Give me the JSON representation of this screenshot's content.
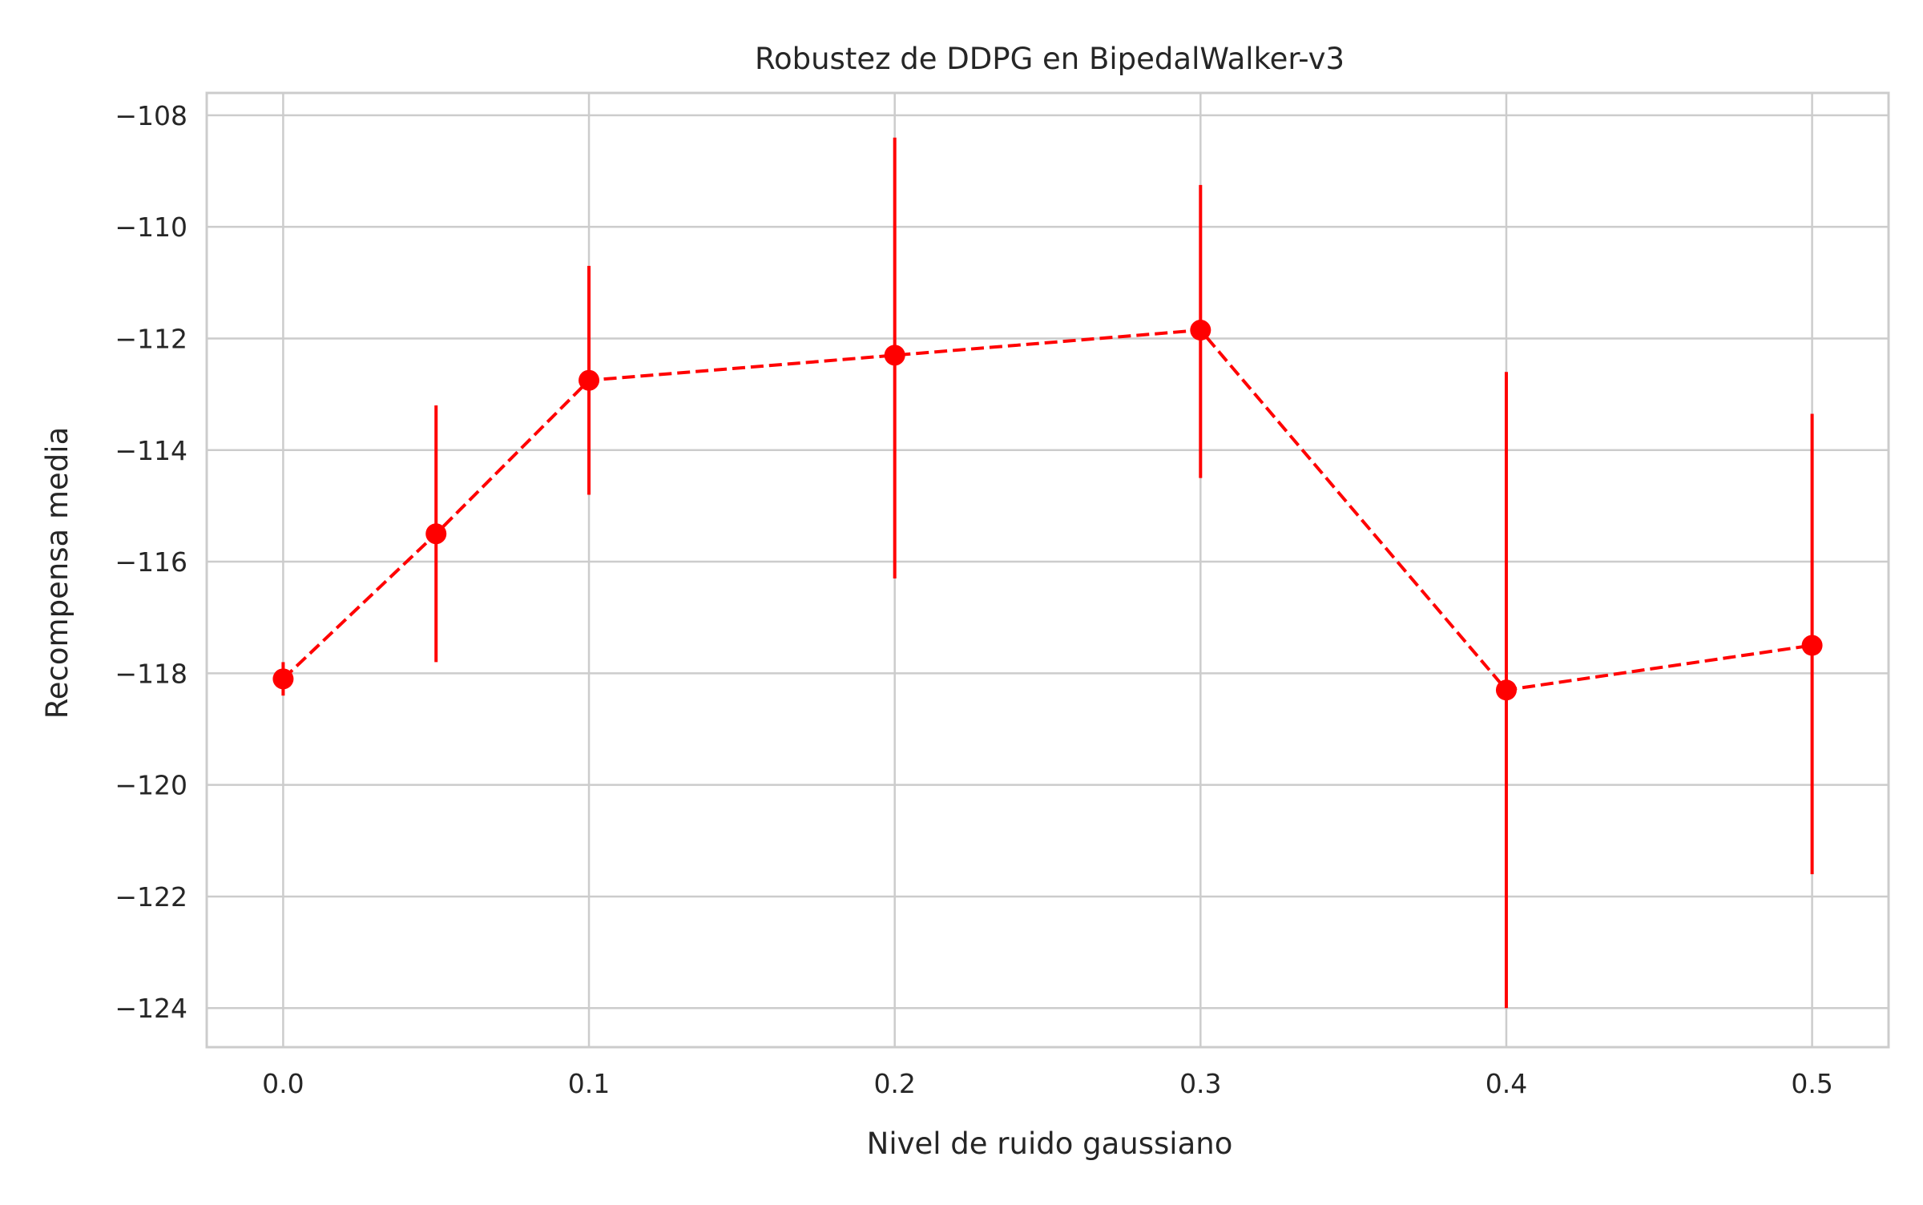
{
  "chart_data": {
    "type": "line",
    "title": "Robustez de DDPG en BipedalWalker-v3",
    "xlabel": "Nivel de ruido gaussiano",
    "ylabel": "Recompensa media",
    "xlim": [
      -0.025,
      0.525
    ],
    "ylim": [
      -124.7,
      -107.6
    ],
    "x_ticks": [
      0.0,
      0.1,
      0.2,
      0.3,
      0.4,
      0.5
    ],
    "x_tick_labels": [
      "0.0",
      "0.1",
      "0.2",
      "0.3",
      "0.4",
      "0.5"
    ],
    "y_ticks": [
      -108,
      -110,
      -112,
      -114,
      -116,
      -118,
      -120,
      -122,
      -124
    ],
    "y_tick_labels": [
      "−108",
      "−110",
      "−112",
      "−114",
      "−116",
      "−118",
      "−120",
      "−122",
      "−124"
    ],
    "grid": true,
    "legend": "none",
    "series": [
      {
        "color": "#ff0000",
        "line_style": "dashed",
        "marker": "circle",
        "x": [
          0.0,
          0.05,
          0.1,
          0.2,
          0.3,
          0.4,
          0.5
        ],
        "y": [
          -118.1,
          -115.5,
          -112.75,
          -112.3,
          -111.85,
          -118.3,
          -117.5
        ],
        "y_err_low": [
          -118.4,
          -117.8,
          -114.8,
          -116.3,
          -114.5,
          -124.0,
          -121.6
        ],
        "y_err_high": [
          -117.8,
          -113.2,
          -110.7,
          -108.4,
          -109.25,
          -112.6,
          -113.35
        ]
      }
    ]
  }
}
